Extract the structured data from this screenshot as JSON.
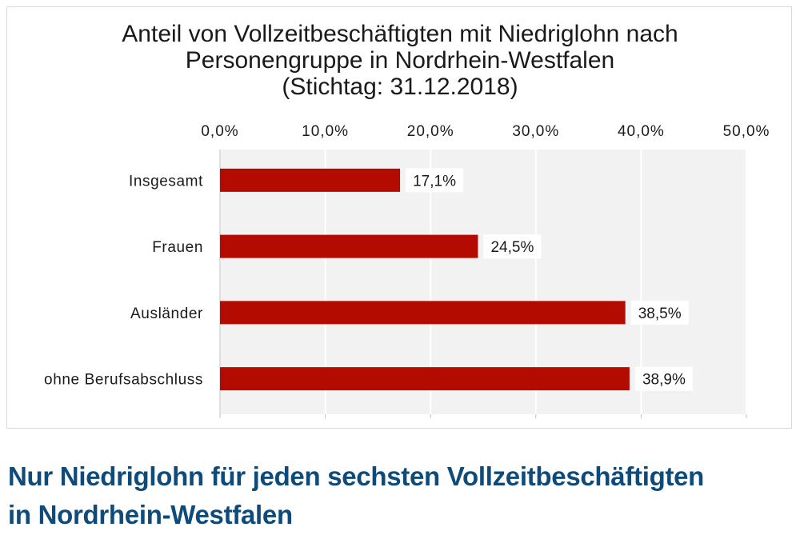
{
  "chart_data": {
    "type": "bar",
    "orientation": "horizontal",
    "title_lines": [
      "Anteil von Vollzeitbeschäftigten mit Niedriglohn nach",
      "Personengruppe in Nordrhein-Westfalen",
      "(Stichtag: 31.12.2018)"
    ],
    "categories": [
      "Insgesamt",
      "Frauen",
      "Ausländer",
      "ohne Berufsabschluss"
    ],
    "values": [
      17.1,
      24.5,
      38.5,
      38.9
    ],
    "data_labels": [
      "17,1%",
      "24,5%",
      "38,5%",
      "38,9%"
    ],
    "xlim": [
      0,
      50
    ],
    "ticks": [
      0,
      10,
      20,
      30,
      40,
      50
    ],
    "tick_labels": [
      "0,0%",
      "10,0%",
      "20,0%",
      "30,0%",
      "40,0%",
      "50,0%"
    ],
    "axis_position": "top",
    "grid": true,
    "bar_color": "#b30b00",
    "plot_background": "#f2f2f2",
    "gridline_color": "#ffffff"
  },
  "headline": {
    "line1": "Nur Niedriglohn für jeden sechsten Vollzeitbeschäftigten",
    "line2": "in Nordrhein-Westfalen",
    "color": "#0f4b7a"
  }
}
